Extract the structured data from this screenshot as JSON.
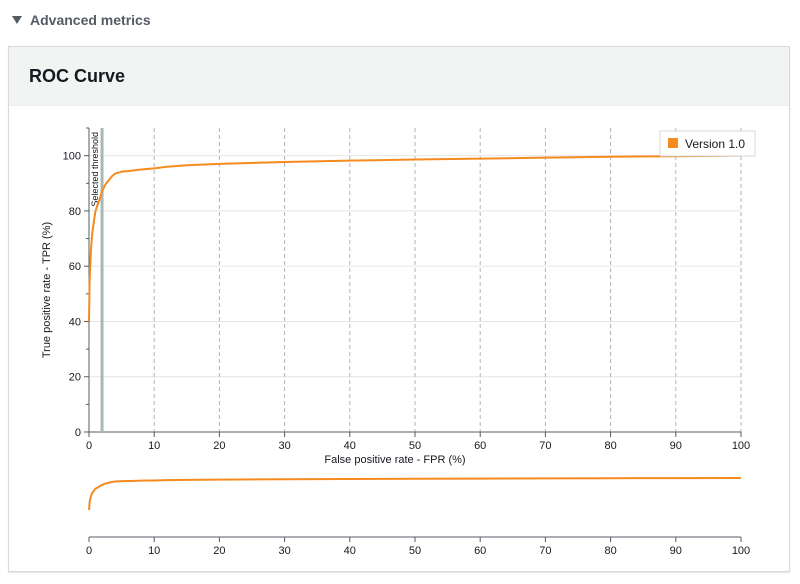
{
  "section": {
    "title": "Advanced metrics"
  },
  "card": {
    "title": "ROC Curve"
  },
  "chart_data": {
    "type": "line",
    "title": "ROC Curve",
    "xlabel": "False positive rate - FPR (%)",
    "ylabel": "True positive rate - TPR (%)",
    "xlim": [
      0,
      100
    ],
    "ylim": [
      0,
      110
    ],
    "xticks": [
      0,
      10,
      20,
      30,
      40,
      50,
      60,
      70,
      80,
      90,
      100
    ],
    "yticks": [
      0,
      20,
      40,
      60,
      80,
      100
    ],
    "grid": "vertical dashed + horizontal solid",
    "legend_position": "top-right",
    "threshold": {
      "label": "Selected threshold",
      "x": 2
    },
    "series": [
      {
        "name": "Version 1.0",
        "color": "#f58b1f",
        "x": [
          0,
          0.1,
          0.3,
          0.5,
          0.8,
          1.0,
          1.3,
          1.6,
          2.0,
          2.5,
          3.0,
          3.5,
          4.0,
          5.0,
          6.0,
          7.0,
          8.0,
          10.0,
          12.0,
          15.0,
          20.0,
          30.0,
          40.0,
          50.0,
          60.0,
          70.0,
          80.0,
          90.0,
          100.0
        ],
        "y": [
          40,
          55,
          66,
          72,
          77,
          80,
          82,
          84,
          87,
          89.5,
          91,
          92.5,
          93.5,
          94.2,
          94.4,
          94.7,
          95.0,
          95.4,
          96.0,
          96.5,
          97.0,
          97.7,
          98.2,
          98.6,
          98.9,
          99.3,
          99.6,
          99.8,
          100.0
        ]
      }
    ],
    "overview": {
      "xticks": [
        0,
        10,
        20,
        30,
        40,
        50,
        60,
        70,
        80,
        90,
        100
      ]
    }
  }
}
